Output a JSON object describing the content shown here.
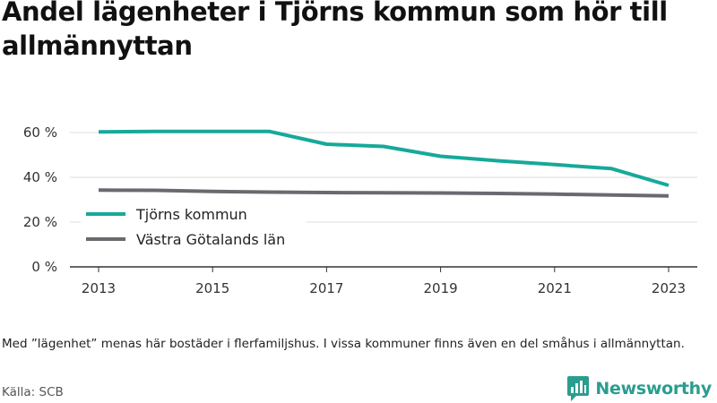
{
  "title": "Andel lägenheter i Tjörns kommun som hör till allmännyttan",
  "note": "Med ”lägenhet” menas här bostäder i flerfamiljshus. I vissa kommuner finns även en del småhus i allmännyttan.",
  "source": "Källa: SCB",
  "brand": {
    "name": "Newsworthy",
    "logo_icon": "bar-chart-speech-bubble-icon",
    "color": "#2a9d8f"
  },
  "chart_data": {
    "type": "line",
    "title": "Andel lägenheter i Tjörns kommun som hör till allmännyttan",
    "xlabel": "",
    "ylabel": "",
    "xlim": [
      2013,
      2023
    ],
    "ylim": [
      0,
      60
    ],
    "x_ticks": [
      2013,
      2015,
      2017,
      2019,
      2021,
      2023
    ],
    "x_tick_labels": [
      "2013",
      "2015",
      "2017",
      "2019",
      "2021",
      "2023"
    ],
    "y_ticks": [
      0,
      20,
      40,
      60
    ],
    "y_tick_labels": [
      "0 %",
      "20 %",
      "40 %",
      "60 %"
    ],
    "grid": "horizontal",
    "legend_position": "bottom-left",
    "series": [
      {
        "name": "Tjörns kommun",
        "color": "#16a99a",
        "x": [
          2013,
          2014,
          2015,
          2016,
          2017,
          2018,
          2019,
          2020,
          2021,
          2022,
          2023
        ],
        "values": [
          60.3,
          60.5,
          60.5,
          60.5,
          54.8,
          53.8,
          49.4,
          47.4,
          45.7,
          43.9,
          36.4
        ]
      },
      {
        "name": "Västra Götalands län",
        "color": "#6b6970",
        "x": [
          2013,
          2014,
          2015,
          2016,
          2017,
          2018,
          2019,
          2020,
          2021,
          2022,
          2023
        ],
        "values": [
          34.3,
          34.2,
          33.7,
          33.4,
          33.2,
          33.1,
          33.0,
          32.8,
          32.5,
          32.1,
          31.7
        ]
      }
    ]
  }
}
